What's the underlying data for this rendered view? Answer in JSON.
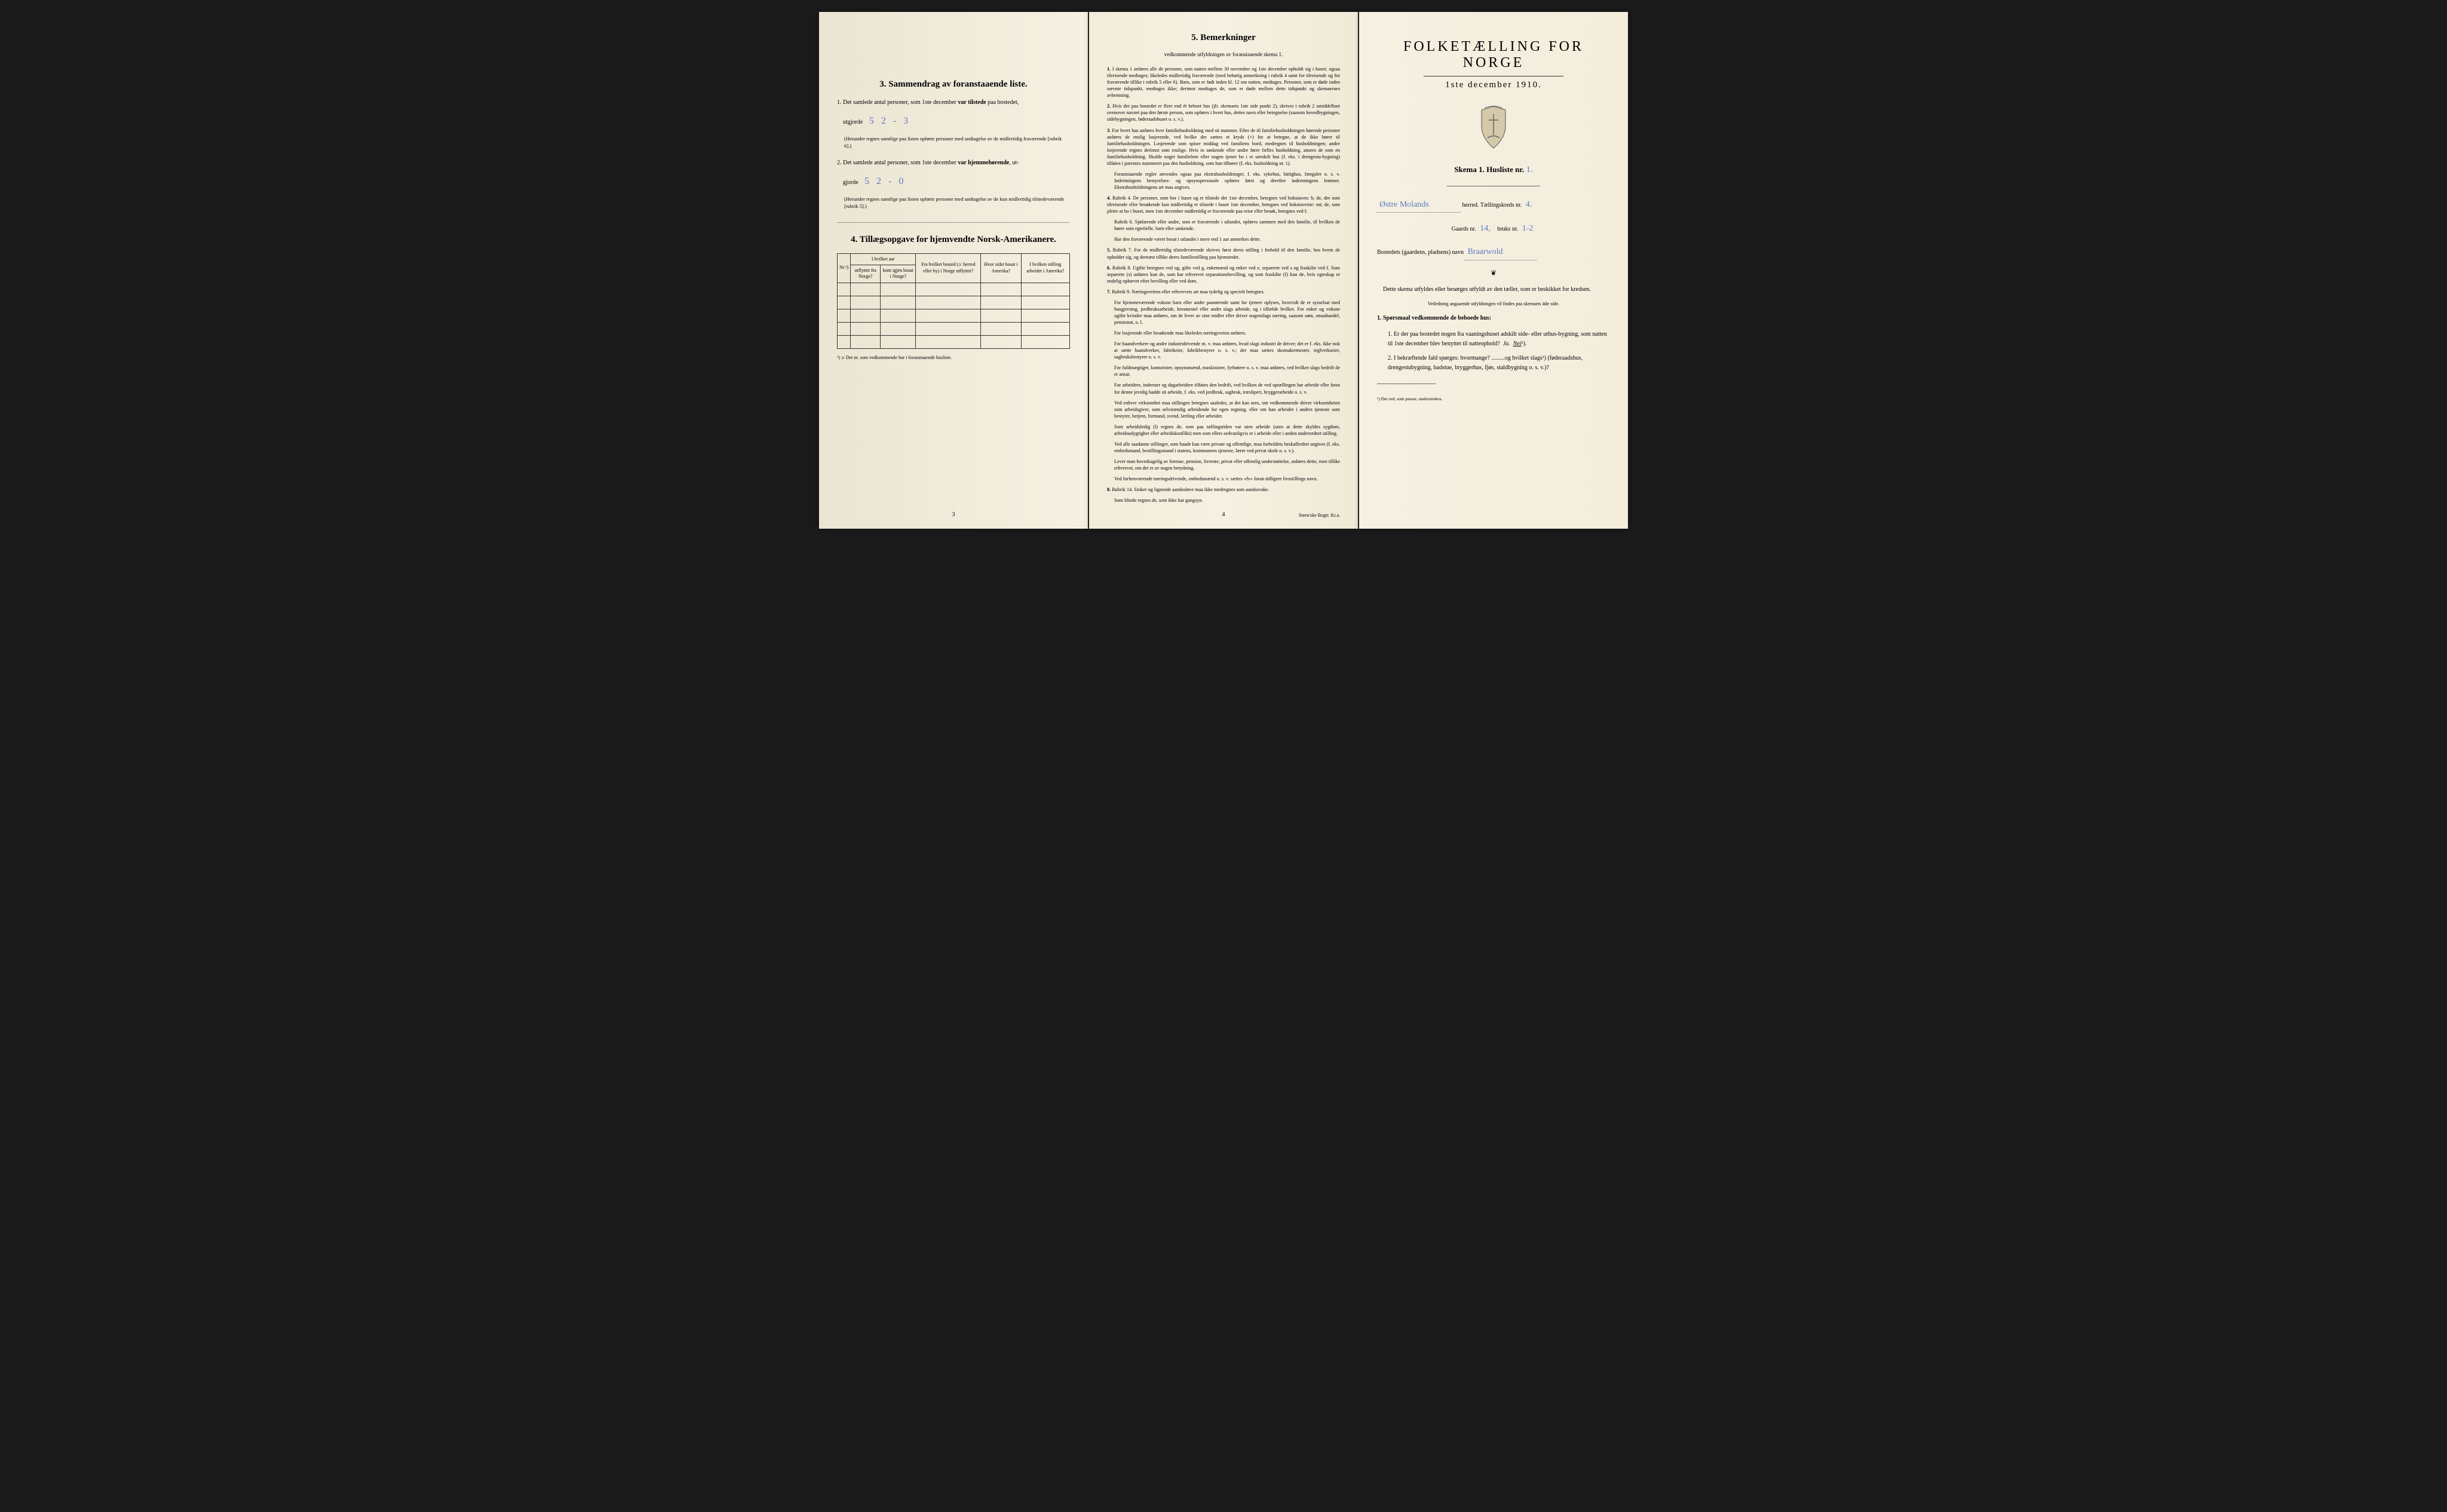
{
  "colors": {
    "paper": "#f5f0e1",
    "ink": "#1a1a1a",
    "handwriting": "#5a7ac4",
    "border": "#333333"
  },
  "left": {
    "section3": {
      "title": "3.  Sammendrag av foranstaaende liste.",
      "item1_pre": "1.  Det samlede antal personer, som 1ste december ",
      "item1_bold": "var tilstede",
      "item1_post": " paa bostedet,",
      "item1_line2_pre": "utgjorde",
      "item1_value": "5   2 - 3",
      "item1_note": "(Herunder regnes samtlige paa listen opførte personer med undtagelse av de midlertidig fraværende [rubrik 6].)",
      "item2_pre": "2.  Det samlede antal personer, som 1ste december ",
      "item2_bold": "var hjemmehørende",
      "item2_post": ", ut-",
      "item2_line2_pre": "gjorde",
      "item2_value": "5   2 - 0",
      "item2_note": "(Herunder regnes samtlige paa listen opførte personer med undtagelse av de kun midlertidig tilstedeværende [rubrik 5].)"
    },
    "section4": {
      "title": "4.  Tillægsopgave for hjemvendte Norsk-Amerikanere.",
      "headers": {
        "col1": "Nr.¹)",
        "col2_top": "I hvilket aar",
        "col2a": "utflyttet fra Norge?",
        "col2b": "kom igjen bosat i Norge?",
        "col3": "Fra hvilket bosted (ɔ: herred eller by) i Norge utflyttet?",
        "col4": "Hvor sidst bosat i Amerika?",
        "col5": "I hvilken stilling arbeidet i Amerika?"
      },
      "row_count": 5,
      "footnote": "¹) ɔ: Det nr. som vedkommende har i foranstaaende husliste."
    },
    "page_num": "3"
  },
  "middle": {
    "title": "5.  Bemerkninger",
    "subtitle": "vedkommende utfyldningen av foranstaaende skema 1.",
    "items": [
      {
        "n": "1.",
        "text": "I skema 1 anføres alle de personer, som natten mellem 30 november og 1ste december opholdt sig i huset; ogsaa tilreisende medtages; likeledes midlertidig fraværende (med behørig anmerkning i rubrik 4 samt for tilreisende og for fraværende tillike i rubrik 5 eller 6). Barn, som er født inden kl. 12 om natten, medtages. Personer, som er døde inden nævnte tidspunkt, medtages ikke; derimot medtages de, som er døde mellem dette tidspunkt og skemaernes avhentning."
      },
      {
        "n": "2.",
        "text": "Hvis der paa bostedet er flere end ét beboet hus (jfr. skemaets 1ste side punkt 2), skrives i rubrik 2 umiddelbart ovenover navnet paa den første person, som opføres i hvert hus, dettes navn eller betegnelse (saasom hovedbygningen, sidebygningen, føderaadshuset o. s. v.)."
      },
      {
        "n": "3.",
        "text": "For hvert hus anføres hver familiehusholdning med sit nummer. Efter de til familiehusholdningen hørende personer anføres de enslig losjerende, ved hvilke der sættes et kryds (×) for at betegne, at de ikke hører til familiehusholdningen. Losjerende som spiser middag ved familiens bord, medregnes til husholdningen; andre losjerende regnes derimot som enslige. Hvis to søskende eller andre fører fælles husholdning, ansees de som en familiehusholdning. Skulde noget familielem eller nogen tjener bo i et særskilt hus (f. eks. i drengestu-bygning) tilføies i parentes nummeret paa den husholdning, som han tilhører (f. eks. husholdning nr. 1).",
        "extra": "Foranstaaende regler anvendes ogsaa paa ekstrahusholdninger, f. eks. sykehus, fattighus, fængsler o. s. v. Indretningens bestyrelses- og opsynspersonale opføres først og derefter indretningens lemmer. Ekstrahusholdningens art maa angives."
      },
      {
        "n": "4.",
        "text": "Rubrik 4. De personer, som bor i huset og er tilstede der 1ste december, betegnes ved bokstaven: b; de, der som tilreisende eller besøkende kun midlertidig er tilstede i huset 1ste december, betegnes ved bokstaverne: mt; de, som pleier at bo i huset, men 1ste december midlertidig er fraværende paa reise eller besøk, betegnes ved f.",
        "extra": "Rubrik 6. Sjøfarende eller andre, som er fraværende i utlandet, opføres sammen med den familie, til hvilken de hører som egtefælle, barn eller søskende.",
        "extra2": "Har den fraværende været bosat i utlandet i mere end 1 aar anmerkes dette."
      },
      {
        "n": "5.",
        "text": "Rubrik 7. For de midlertidig tilstedeværende skrives først deres stilling i forhold til den familie, hos hvem de opholder sig, og dernæst tillike deres familiestilling paa hjemstedet."
      },
      {
        "n": "6.",
        "text": "Rubrik 8. Ugifte betegnes ved ug, gifte ved g, enkemænd og enker ved e, separerte ved s og fraskilte ved f. Som separerte (s) anføres kun de, som har erhvervet separationsbevilling, og som fraskilte (f) kun de, hvis egteskap er endelig ophævet efter bevilling eller ved dom."
      },
      {
        "n": "7.",
        "text": "Rubrik 9. Næringsveiens eller erhvervets art maa tydelig og specielt betegnes.",
        "paras": [
          "For hjemmeværende voksne barn eller andre paarørende samt for tjenere oplyses, hvorvidt de er sysselsat med husgjerning, jordbruksarbeide, kreaturstel eller andet slags arbeide, og i tilfælde hvilket. For enker og voksne ugifte kvinder maa anføres, om de lever av sine midler eller driver nogenslags næring, saasom søm, smaahandel, pensionat, o. l.",
          "For losjerende eller besøkende maa likeledes næringsveien anføres.",
          "For haandverkere og andre industridrivende m. v. maa anføres, hvad slags industri de driver; det er f. eks. ikke nok at sætte haandverker, fabrikeier, fabrikbestyrer o. s. v.; der maa sættes skomakermester, teglverkseier, sagbruksbestyrer o. s. v.",
          "For fuldmægtiger, kontorister, opsynsmænd, maskinister, fyrbøtere o. s. v. maa anføres, ved hvilket slags bedrift de er ansat.",
          "For arbeidere, inderster og dagarbeidere tilføies den bedrift, ved hvilken de ved optællingen har arbeide eller forut for denne jevnlig hadde sit arbeide, f. eks. ved jordbruk, sagbruk, træsliperi, bryggerarbeide o. s. v.",
          "Ved enhver virksomhet maa stillingen betegnes saaledes, at det kan sees, om vedkommende driver virksomheten som arbeidsgiver, som selvstændig arbeidende for egen regning, eller om han arbeider i andres tjeneste som bestyrer, betjent, formand, svend, lærling eller arbeider.",
          "Som arbeidsledig (l) regnes de, som paa tællingstiden var uten arbeide (uten at dette skyldes sygdom, arbeidsudygtighet eller arbeidskonflikt) men som ellers sedvanligvis er i arbeide eller i anden underordnet stilling.",
          "Ved alle saadanne stillinger, som baade kan være private og offentlige, maa forholdets beskaffenhet angives (f. eks. embedsmand, bestillingsmand i statens, kommunens tjeneste, lærer ved privat skole o. s. v.).",
          "Lever man hovedsagelig av formue, pension, livrente, privat eller offentlig understøttelse, anføres dette, men tillike erhvervet, om det er av nogen betydning.",
          "Ved forhenværende næringsdrivende, embedsmænd o. s. v. sættes «fv» foran tidligere livsstillings navn."
        ]
      },
      {
        "n": "8.",
        "text": "Rubrik 14. Sinker og lignende aandssløve maa ikke medregnes som aandssvake.",
        "extra": "Som blinde regnes de, som ikke har gangsyn."
      }
    ],
    "page_num": "4",
    "printer": "Steen'ske Bogtr.  Kr.a."
  },
  "right": {
    "title": "FOLKETÆLLING FOR NORGE",
    "date": "1ste december 1910.",
    "skema_label": "Skema 1.  Husliste nr.",
    "husliste_nr": "1.",
    "herred_value": "Østre Molands",
    "herred_label": "herred.  Tællingskreds nr.",
    "kreds_nr": "4.",
    "gaards_label": "Gaards nr.",
    "gaards_nr": "14,",
    "bruks_label": "bruks nr.",
    "bruks_nr": "1-2",
    "bosted_label": "Bostedets (gaardens, pladsens) navn",
    "bosted_value": "Braarwold",
    "body1": "Dette skema utfyldes eller besørges utfyldt av den tæller, som er beskikket for kredsen.",
    "body1_sub": "Veiledning angaaende utfyldningen vil findes paa skemaets 4de side.",
    "q_title": "1. Spørsmaal vedkommende de beboede hus:",
    "q1": "1.  Er der paa bostedet nogen fra vaaningshuset adskilt side- eller uthus-bygning, som natten til 1ste december blev benyttet til natteophold?",
    "q1_ja": "Ja.",
    "q1_nei": "Nei",
    "q1_sup": "¹).",
    "q2": "2.  I bekræftende fald spørges: hvormange? .........og hvilket slags¹) (føderaadshus, drengestubygning, badstue, bryggerhus, fjøs, staldbygning o. s. v.)?",
    "footnote": "¹) Det ord, som passer, understrekes."
  }
}
